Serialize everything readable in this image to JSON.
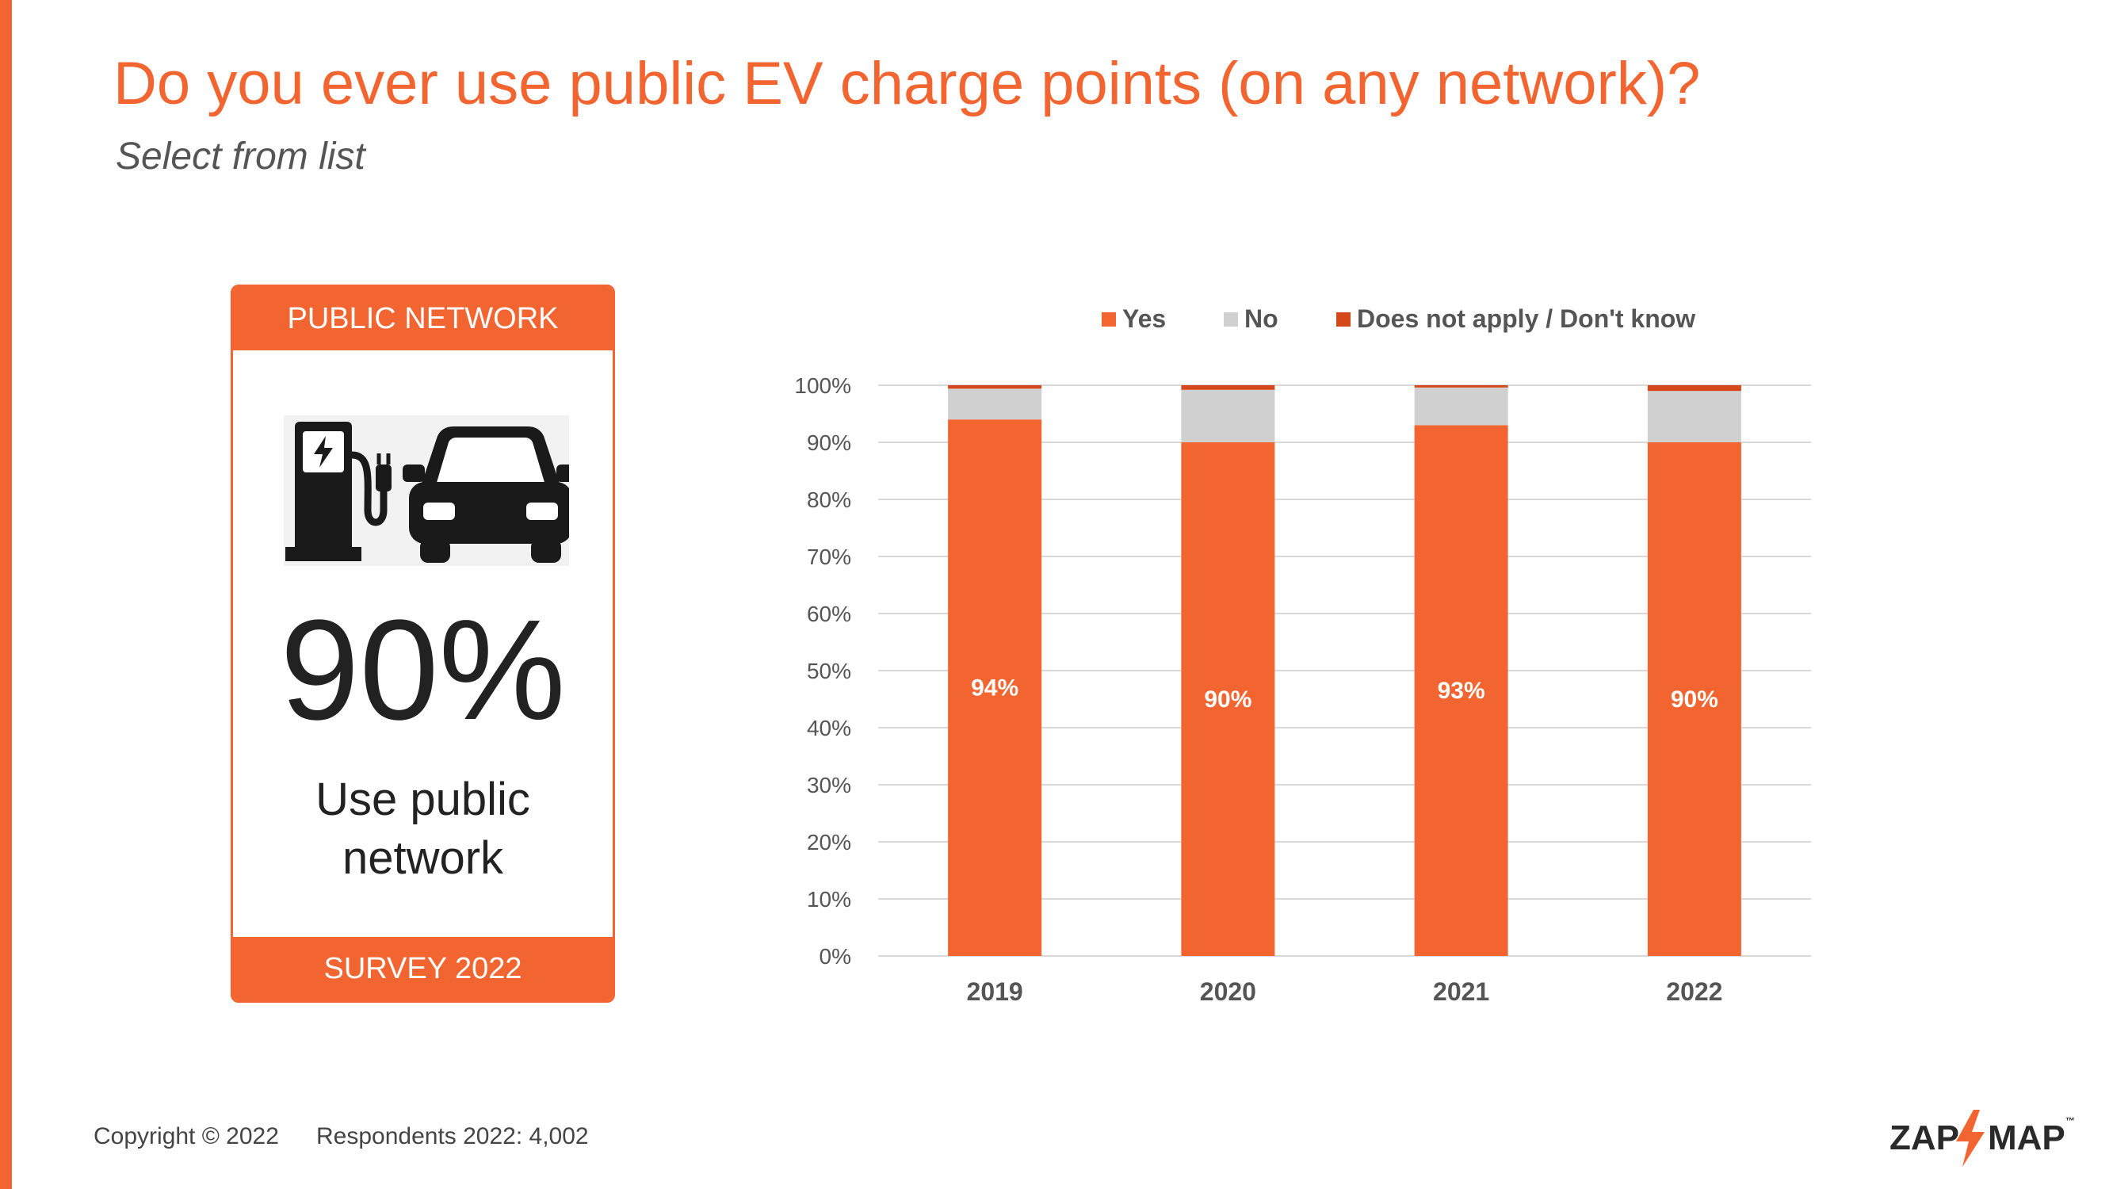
{
  "header": {
    "title": "Do you ever use public EV charge points (on any network)?",
    "subtitle": "Select from list"
  },
  "card": {
    "header_label": "PUBLIC NETWORK",
    "stat": "90%",
    "caption_line1": "Use public",
    "caption_line2": "network",
    "footer_label": "SURVEY 2022",
    "icons": [
      "ev-charger-icon",
      "car-icon"
    ]
  },
  "footer": {
    "copyright": "Copyright © 2022",
    "respondents": "Respondents 2022: 4,002"
  },
  "logo": {
    "left_text": "ZAP",
    "right_text": "MAP",
    "mark": "™"
  },
  "colors": {
    "accent": "#f26430",
    "yes": "#f26430",
    "no": "#d0d0d0",
    "does_not_apply": "#d4481b",
    "gridline": "#d9d9d9",
    "text_dark": "#222222",
    "axis_text": "#555555"
  },
  "chart_data": {
    "type": "bar",
    "stacked": true,
    "categories": [
      "2019",
      "2020",
      "2021",
      "2022"
    ],
    "series": [
      {
        "name": "Yes",
        "color": "#f26430",
        "values": [
          94,
          90,
          93,
          90
        ],
        "labels": [
          "94%",
          "90%",
          "93%",
          "90%"
        ]
      },
      {
        "name": "No",
        "color": "#d0d0d0",
        "values": [
          5.4,
          9.2,
          6.6,
          9.0
        ]
      },
      {
        "name": "Does not apply / Don't know",
        "color": "#d4481b",
        "values": [
          0.6,
          0.8,
          0.4,
          1.0
        ]
      }
    ],
    "ylim": [
      0,
      100
    ],
    "yticks": [
      "0%",
      "10%",
      "20%",
      "30%",
      "40%",
      "50%",
      "60%",
      "70%",
      "80%",
      "90%",
      "100%"
    ],
    "grid": true,
    "legend_position": "top"
  }
}
